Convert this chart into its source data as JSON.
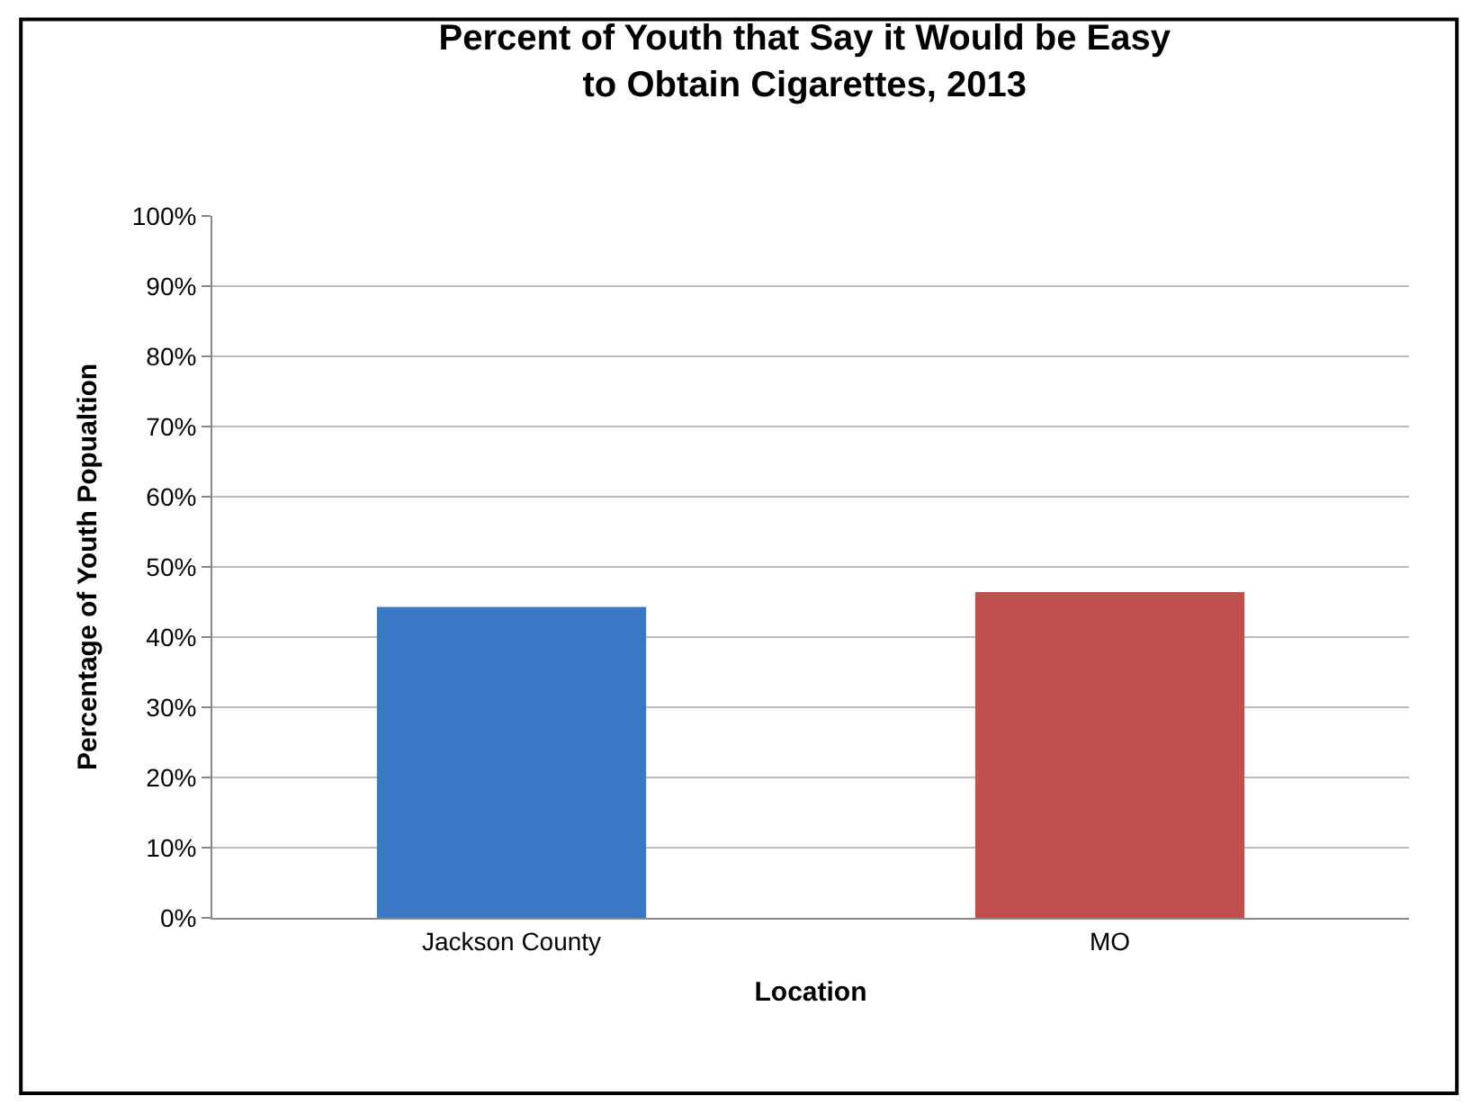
{
  "chart_data": {
    "type": "bar",
    "title": "Percent of Youth that Say it Would be Easy\nto Obtain Cigarettes, 2013",
    "xlabel": "Location",
    "ylabel": "Percentage of Youth Popualtion",
    "categories": [
      "Jackson County",
      "MO"
    ],
    "values": [
      44.3,
      46.4
    ],
    "colors": [
      "#3a78c6",
      "#c0504d"
    ],
    "ylim": [
      0,
      100
    ],
    "yticks": [
      {
        "value": 0,
        "label": "0%"
      },
      {
        "value": 10,
        "label": "10%"
      },
      {
        "value": 20,
        "label": "20%"
      },
      {
        "value": 30,
        "label": "30%"
      },
      {
        "value": 40,
        "label": "40%"
      },
      {
        "value": 50,
        "label": "50%"
      },
      {
        "value": 60,
        "label": "60%"
      },
      {
        "value": 70,
        "label": "70%"
      },
      {
        "value": 80,
        "label": "80%"
      },
      {
        "value": 90,
        "label": "90%"
      },
      {
        "value": 100,
        "label": "100%"
      }
    ],
    "grid": "y"
  }
}
